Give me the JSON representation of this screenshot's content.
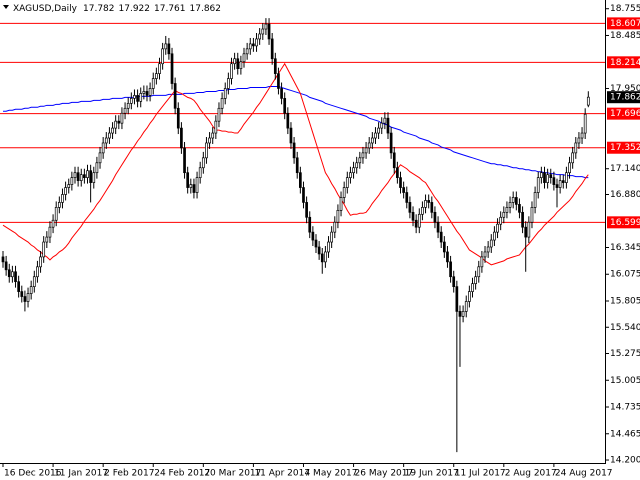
{
  "chart_data": {
    "type": "candlestick",
    "title": "XAGUSD,Daily",
    "categories": [
      "16 Dec 2016",
      null,
      null,
      null,
      null,
      null,
      null,
      null,
      null,
      null,
      null,
      null,
      null,
      null,
      null,
      null,
      "11 Jan 2017",
      null,
      null,
      null,
      null,
      null,
      null,
      null,
      null,
      null,
      null,
      null,
      null,
      null,
      null,
      null,
      "2 Feb 2017",
      null,
      null,
      null,
      null,
      null,
      null,
      null,
      null,
      null,
      null,
      null,
      null,
      null,
      null,
      null,
      "24 Feb 2017",
      null,
      null,
      null,
      null,
      null,
      null,
      null,
      null,
      null,
      null,
      null,
      null,
      null,
      null,
      null,
      "20 Mar 2017",
      null,
      null,
      null,
      null,
      null,
      null,
      null,
      null,
      null,
      null,
      null,
      null,
      null,
      null,
      null,
      "11 Apr 2017",
      null,
      null,
      null,
      null,
      null,
      null,
      null,
      null,
      null,
      null,
      null,
      null,
      null,
      null,
      null,
      "4 May 2017",
      null,
      null,
      null,
      null,
      null,
      null,
      null,
      null,
      null,
      null,
      null,
      null,
      null,
      null,
      null,
      "26 May 2017",
      null,
      null,
      null,
      null,
      null,
      null,
      null,
      null,
      null,
      null,
      null,
      null,
      null,
      null,
      null,
      "19 Jun 2017",
      null,
      null,
      null,
      null,
      null,
      null,
      null,
      null,
      null,
      null,
      null,
      null,
      null,
      null,
      null,
      "11 Jul 2017",
      null,
      null,
      null,
      null,
      null,
      null,
      null,
      null,
      null,
      null,
      null,
      null,
      null,
      null,
      null,
      "2 Aug 2017",
      null,
      null,
      null,
      null,
      null,
      null,
      null,
      null,
      null,
      null,
      null,
      null,
      null,
      null,
      null,
      "24 Aug 2017",
      null,
      null,
      null,
      null,
      null,
      null,
      null,
      null,
      null,
      null,
      null
    ],
    "open": [
      16.25,
      16.2,
      16.12,
      16.05,
      16.1,
      16.0,
      15.9,
      15.85,
      15.8,
      15.88,
      15.95,
      16.05,
      16.15,
      16.25,
      16.4,
      16.45,
      16.55,
      16.62,
      16.75,
      16.8,
      16.88,
      16.95,
      16.98,
      17.05,
      17.1,
      17.02,
      17.08,
      17.05,
      17.12,
      17.0,
      17.1,
      17.2,
      17.3,
      17.4,
      17.45,
      17.5,
      17.55,
      17.62,
      17.6,
      17.7,
      17.75,
      17.8,
      17.85,
      17.88,
      17.82,
      17.9,
      17.92,
      17.88,
      17.95,
      18.05,
      18.1,
      18.2,
      18.35,
      18.4,
      18.3,
      18.0,
      17.75,
      17.55,
      17.35,
      17.1,
      16.95,
      16.98,
      16.9,
      17.05,
      17.15,
      17.25,
      17.4,
      17.45,
      17.5,
      17.62,
      17.75,
      17.85,
      17.95,
      18.05,
      18.2,
      18.25,
      18.15,
      18.22,
      18.3,
      18.35,
      18.4,
      18.38,
      18.45,
      18.5,
      18.55,
      18.6,
      18.45,
      18.25,
      18.1,
      17.95,
      17.85,
      17.7,
      17.55,
      17.4,
      17.25,
      17.1,
      16.95,
      16.8,
      16.65,
      16.5,
      16.42,
      16.35,
      16.28,
      16.2,
      16.3,
      16.4,
      16.5,
      16.6,
      16.72,
      16.85,
      16.95,
      17.05,
      17.1,
      17.15,
      17.2,
      17.25,
      17.3,
      17.35,
      17.4,
      17.45,
      17.5,
      17.55,
      17.6,
      17.65,
      17.5,
      17.3,
      17.15,
      17.05,
      16.95,
      16.9,
      16.8,
      16.7,
      16.62,
      16.55,
      16.68,
      16.75,
      16.82,
      16.8,
      16.7,
      16.6,
      16.5,
      16.4,
      16.3,
      16.2,
      16.05,
      15.95,
      15.7,
      15.65,
      15.7,
      15.8,
      15.9,
      15.98,
      16.05,
      16.15,
      16.25,
      16.3,
      16.35,
      16.42,
      16.5,
      16.58,
      16.65,
      16.7,
      16.75,
      16.8,
      16.85,
      16.78,
      16.7,
      16.55,
      16.45,
      16.6,
      16.75,
      16.9,
      17.05,
      17.1,
      17.0,
      17.08,
      17.05,
      16.98,
      16.95,
      17.02,
      17.0,
      17.1,
      17.2,
      17.3,
      17.4,
      17.45,
      17.5,
      17.782
    ],
    "high": [
      16.31,
      16.26,
      16.18,
      16.16,
      16.16,
      16.06,
      15.96,
      15.91,
      15.94,
      16.01,
      16.11,
      16.21,
      16.31,
      16.46,
      16.51,
      16.61,
      16.68,
      16.81,
      16.86,
      16.94,
      17.01,
      17.04,
      17.11,
      17.16,
      17.16,
      17.14,
      17.14,
      17.18,
      17.18,
      17.16,
      17.26,
      17.36,
      17.46,
      17.51,
      17.56,
      17.61,
      17.68,
      17.68,
      17.76,
      17.81,
      17.86,
      17.91,
      17.94,
      17.94,
      17.96,
      17.98,
      17.98,
      18.01,
      18.11,
      18.16,
      18.26,
      18.41,
      18.48,
      18.46,
      18.36,
      18.06,
      17.81,
      17.61,
      17.41,
      17.16,
      17.04,
      17.04,
      17.11,
      17.21,
      17.31,
      17.46,
      17.51,
      17.56,
      17.68,
      17.81,
      17.91,
      18.01,
      18.11,
      18.26,
      18.31,
      18.31,
      18.28,
      18.36,
      18.41,
      18.46,
      18.46,
      18.51,
      18.56,
      18.61,
      18.66,
      18.66,
      18.51,
      18.31,
      18.16,
      18.01,
      17.91,
      17.76,
      17.61,
      17.46,
      17.31,
      17.16,
      17.01,
      16.86,
      16.71,
      16.56,
      16.48,
      16.41,
      16.34,
      16.36,
      16.46,
      16.56,
      16.66,
      16.78,
      16.91,
      17.01,
      17.11,
      17.16,
      17.21,
      17.26,
      17.31,
      17.36,
      17.41,
      17.46,
      17.51,
      17.56,
      17.61,
      17.66,
      17.71,
      17.71,
      17.56,
      17.36,
      17.21,
      17.11,
      17.01,
      16.96,
      16.86,
      16.76,
      16.68,
      16.74,
      16.81,
      16.88,
      16.88,
      16.86,
      16.76,
      16.66,
      16.56,
      16.46,
      16.36,
      16.26,
      16.11,
      16.01,
      15.76,
      15.76,
      15.86,
      15.96,
      16.04,
      16.11,
      16.21,
      16.31,
      16.36,
      16.41,
      16.48,
      16.56,
      16.64,
      16.71,
      16.76,
      16.81,
      16.86,
      16.91,
      16.91,
      16.84,
      16.76,
      16.61,
      16.66,
      16.81,
      16.96,
      17.11,
      17.16,
      17.16,
      17.14,
      17.14,
      17.11,
      17.04,
      17.08,
      17.08,
      17.16,
      17.26,
      17.36,
      17.46,
      17.51,
      17.56,
      17.75,
      17.922
    ],
    "low": [
      16.14,
      16.06,
      15.99,
      15.99,
      15.94,
      15.84,
      15.79,
      15.7,
      15.74,
      15.82,
      15.89,
      15.99,
      16.09,
      16.19,
      16.34,
      16.39,
      16.49,
      16.56,
      16.69,
      16.74,
      16.82,
      16.89,
      16.92,
      16.99,
      16.96,
      16.96,
      16.99,
      16.99,
      16.8,
      16.94,
      17.04,
      17.14,
      17.24,
      17.34,
      17.39,
      17.44,
      17.49,
      17.54,
      17.54,
      17.64,
      17.69,
      17.74,
      17.79,
      17.76,
      17.76,
      17.84,
      17.82,
      17.82,
      17.89,
      17.99,
      18.04,
      18.14,
      18.29,
      18.24,
      17.94,
      17.69,
      17.49,
      17.29,
      17.04,
      16.89,
      16.89,
      16.84,
      16.84,
      16.99,
      17.09,
      17.19,
      17.34,
      17.39,
      17.44,
      17.56,
      17.69,
      17.79,
      17.89,
      17.99,
      18.14,
      18.09,
      18.09,
      18.16,
      18.24,
      18.29,
      18.32,
      18.32,
      18.39,
      18.44,
      18.49,
      18.39,
      18.19,
      18.04,
      17.89,
      17.79,
      17.64,
      17.49,
      17.34,
      17.19,
      17.04,
      16.89,
      16.74,
      16.59,
      16.44,
      16.36,
      16.29,
      16.22,
      16.08,
      16.14,
      16.24,
      16.34,
      16.44,
      16.54,
      16.66,
      16.79,
      16.89,
      16.99,
      17.04,
      17.09,
      17.14,
      17.19,
      17.24,
      17.29,
      17.34,
      17.39,
      17.44,
      17.49,
      17.54,
      17.44,
      17.24,
      17.09,
      16.99,
      16.89,
      16.84,
      16.74,
      16.64,
      16.56,
      16.49,
      16.49,
      16.62,
      16.69,
      16.74,
      16.64,
      16.54,
      16.44,
      16.34,
      16.24,
      16.14,
      15.99,
      15.89,
      14.28,
      15.14,
      15.59,
      15.64,
      15.74,
      15.84,
      15.92,
      15.99,
      16.09,
      16.19,
      16.24,
      16.29,
      16.36,
      16.44,
      16.52,
      16.59,
      16.64,
      16.69,
      16.74,
      16.72,
      16.64,
      16.49,
      16.1,
      16.39,
      16.54,
      16.69,
      16.84,
      16.99,
      16.94,
      16.94,
      16.99,
      16.92,
      16.75,
      16.89,
      16.94,
      16.94,
      17.04,
      17.14,
      17.24,
      17.34,
      17.39,
      17.44,
      17.761
    ],
    "close": [
      16.2,
      16.12,
      16.05,
      16.1,
      16.0,
      15.9,
      15.85,
      15.8,
      15.88,
      15.95,
      16.05,
      16.15,
      16.25,
      16.4,
      16.45,
      16.55,
      16.62,
      16.75,
      16.8,
      16.88,
      16.95,
      16.98,
      17.05,
      17.1,
      17.02,
      17.08,
      17.05,
      17.12,
      17.0,
      17.1,
      17.2,
      17.3,
      17.4,
      17.45,
      17.5,
      17.55,
      17.62,
      17.6,
      17.7,
      17.75,
      17.8,
      17.85,
      17.88,
      17.82,
      17.9,
      17.92,
      17.88,
      17.95,
      18.05,
      18.1,
      18.2,
      18.35,
      18.4,
      18.3,
      18.0,
      17.75,
      17.55,
      17.35,
      17.1,
      16.95,
      16.98,
      16.9,
      17.05,
      17.15,
      17.25,
      17.4,
      17.45,
      17.5,
      17.62,
      17.75,
      17.85,
      17.95,
      18.05,
      18.2,
      18.25,
      18.15,
      18.22,
      18.3,
      18.35,
      18.4,
      18.38,
      18.45,
      18.5,
      18.55,
      18.6,
      18.45,
      18.25,
      18.1,
      17.95,
      17.85,
      17.7,
      17.55,
      17.4,
      17.25,
      17.1,
      16.95,
      16.8,
      16.65,
      16.5,
      16.42,
      16.35,
      16.28,
      16.2,
      16.3,
      16.4,
      16.5,
      16.6,
      16.72,
      16.85,
      16.95,
      17.05,
      17.1,
      17.15,
      17.2,
      17.25,
      17.3,
      17.35,
      17.4,
      17.45,
      17.5,
      17.55,
      17.6,
      17.65,
      17.5,
      17.3,
      17.15,
      17.05,
      16.95,
      16.9,
      16.8,
      16.7,
      16.62,
      16.55,
      16.68,
      16.75,
      16.82,
      16.8,
      16.7,
      16.6,
      16.5,
      16.4,
      16.3,
      16.2,
      16.05,
      15.95,
      15.7,
      15.65,
      15.7,
      15.8,
      15.9,
      15.98,
      16.05,
      16.15,
      16.25,
      16.3,
      16.35,
      16.42,
      16.5,
      16.58,
      16.65,
      16.7,
      16.75,
      16.8,
      16.85,
      16.78,
      16.7,
      16.55,
      16.45,
      16.6,
      16.75,
      16.9,
      17.05,
      17.1,
      17.0,
      17.08,
      17.05,
      16.98,
      16.95,
      17.02,
      17.0,
      17.1,
      17.2,
      17.3,
      17.4,
      17.45,
      17.5,
      17.69,
      17.862
    ],
    "up_color": "#ffffff",
    "down_color": "#000000",
    "moving_averages": [
      {
        "color": "#0000ff",
        "values": [
          17.72,
          17.72,
          17.73,
          17.73,
          17.74,
          17.74,
          17.74,
          17.75,
          17.75,
          17.76,
          17.76,
          17.76,
          17.77,
          17.77,
          17.78,
          17.78,
          17.78,
          17.79,
          17.79,
          17.8,
          17.8,
          17.8,
          17.81,
          17.81,
          17.81,
          17.82,
          17.82,
          17.82,
          17.82,
          17.83,
          17.83,
          17.83,
          17.84,
          17.84,
          17.84,
          17.85,
          17.85,
          17.85,
          17.85,
          17.86,
          17.86,
          17.86,
          17.86,
          17.87,
          17.87,
          17.87,
          17.87,
          17.87,
          17.88,
          17.88,
          17.88,
          17.88,
          17.88,
          17.89,
          17.89,
          17.89,
          17.89,
          17.89,
          17.9,
          17.9,
          17.9,
          17.9,
          17.91,
          17.91,
          17.91,
          17.92,
          17.92,
          17.92,
          17.92,
          17.93,
          17.93,
          17.93,
          17.94,
          17.94,
          17.94,
          17.95,
          17.95,
          17.95,
          17.95,
          17.96,
          17.96,
          17.96,
          17.96,
          17.96,
          17.96,
          17.97,
          17.97,
          17.97,
          17.97,
          17.96,
          17.95,
          17.94,
          17.93,
          17.92,
          17.91,
          17.9,
          17.89,
          17.88,
          17.86,
          17.85,
          17.84,
          17.83,
          17.82,
          17.8,
          17.79,
          17.78,
          17.77,
          17.76,
          17.75,
          17.74,
          17.73,
          17.72,
          17.71,
          17.7,
          17.69,
          17.68,
          17.67,
          17.65,
          17.64,
          17.63,
          17.62,
          17.6,
          17.59,
          17.58,
          17.56,
          17.55,
          17.54,
          17.53,
          17.51,
          17.5,
          17.49,
          17.48,
          17.47,
          17.45,
          17.44,
          17.43,
          17.42,
          17.4,
          17.39,
          17.38,
          17.36,
          17.35,
          17.34,
          17.33,
          17.31,
          17.3,
          17.29,
          17.28,
          17.27,
          17.26,
          17.25,
          17.24,
          17.23,
          17.22,
          17.21,
          17.2,
          17.19,
          17.19,
          17.18,
          17.18,
          17.17,
          17.17,
          17.16,
          17.15,
          17.15,
          17.14,
          17.14,
          17.13,
          17.13,
          17.12,
          17.12,
          17.11,
          17.11,
          17.1,
          17.1,
          17.09,
          17.09,
          17.08,
          17.08,
          17.08,
          17.07,
          17.07,
          17.07,
          17.06,
          17.06,
          17.06,
          17.05,
          17.05
        ]
      },
      {
        "color": "#ff0000",
        "values": [
          16.57,
          16.55,
          16.53,
          16.51,
          16.49,
          16.46,
          16.44,
          16.42,
          16.4,
          16.37,
          16.35,
          16.32,
          16.3,
          16.27,
          16.25,
          16.22,
          16.25,
          16.27,
          16.3,
          16.32,
          16.35,
          16.39,
          16.44,
          16.48,
          16.52,
          16.56,
          16.61,
          16.65,
          16.69,
          16.73,
          16.78,
          16.82,
          16.87,
          16.92,
          16.97,
          17.02,
          17.08,
          17.13,
          17.18,
          17.23,
          17.28,
          17.33,
          17.37,
          17.42,
          17.46,
          17.51,
          17.55,
          17.6,
          17.64,
          17.69,
          17.73,
          17.77,
          17.81,
          17.85,
          17.89,
          17.93,
          17.91,
          17.9,
          17.88,
          17.86,
          17.85,
          17.83,
          17.79,
          17.74,
          17.7,
          17.66,
          17.62,
          17.57,
          17.53,
          17.53,
          17.52,
          17.52,
          17.51,
          17.51,
          17.5,
          17.5,
          17.54,
          17.59,
          17.63,
          17.67,
          17.71,
          17.76,
          17.8,
          17.85,
          17.9,
          17.95,
          18.0,
          18.05,
          18.1,
          18.15,
          18.2,
          18.14,
          18.08,
          18.02,
          17.96,
          17.9,
          17.8,
          17.7,
          17.6,
          17.5,
          17.4,
          17.3,
          17.2,
          17.1,
          17.05,
          16.99,
          16.94,
          16.88,
          16.83,
          16.78,
          16.72,
          16.67,
          16.68,
          16.68,
          16.69,
          16.69,
          16.7,
          16.74,
          16.79,
          16.83,
          16.87,
          16.92,
          16.96,
          17.0,
          17.05,
          17.09,
          17.14,
          17.18,
          17.16,
          17.14,
          17.11,
          17.09,
          17.07,
          17.05,
          17.02,
          17.0,
          16.95,
          16.9,
          16.85,
          16.81,
          16.76,
          16.71,
          16.66,
          16.61,
          16.56,
          16.51,
          16.47,
          16.42,
          16.37,
          16.32,
          16.3,
          16.28,
          16.26,
          16.24,
          16.21,
          16.19,
          16.17,
          16.18,
          16.19,
          16.2,
          16.21,
          16.23,
          16.24,
          16.25,
          16.26,
          16.27,
          16.31,
          16.35,
          16.38,
          16.42,
          16.46,
          16.5,
          16.53,
          16.57,
          16.6,
          16.63,
          16.66,
          16.7,
          16.73,
          16.76,
          16.79,
          16.82,
          16.86,
          16.91,
          16.95,
          16.99,
          17.04,
          17.08
        ]
      }
    ],
    "levels": {
      "color": "#ff0000",
      "values": [
        18.607,
        18.214,
        17.696,
        17.352,
        16.599
      ]
    },
    "ylim": [
      14.18,
      18.843
    ],
    "yticks": [
      18.755,
      18.485,
      {
        "value": 17.95,
        "label": "17.950"
      },
      {
        "value": 17.14,
        "label": "17.140"
      },
      {
        "value": 16.88,
        "label": "16.880"
      },
      16.345,
      16.075,
      15.805,
      {
        "value": 15.54,
        "label": "15.540"
      },
      15.275,
      15.005,
      14.735,
      14.465,
      {
        "value": 14.2,
        "label": "14.200"
      }
    ],
    "grid": false
  }
}
